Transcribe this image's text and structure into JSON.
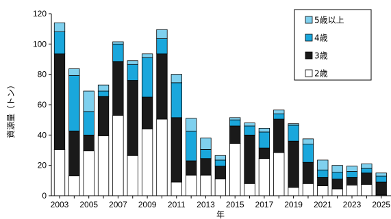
{
  "chart_data": {
    "type": "bar",
    "stacked": true,
    "xlabel": "年",
    "ylabel": "資源量（トン）",
    "ylim": [
      0,
      120
    ],
    "yticks": [
      0,
      20,
      40,
      60,
      80,
      100,
      120
    ],
    "categories": [
      "2003",
      "2004",
      "2005",
      "2006",
      "2007",
      "2008",
      "2009",
      "2010",
      "2011",
      "2012",
      "2013",
      "2014",
      "2015",
      "2016",
      "2017",
      "2018",
      "2019",
      "2020",
      "2021",
      "2022",
      "2023",
      "2024",
      "2025"
    ],
    "xtick_labels": [
      "2003",
      "2005",
      "2007",
      "2009",
      "2011",
      "2013",
      "2015",
      "2017",
      "2019",
      "2021",
      "2023",
      "2025"
    ],
    "legend_position": "top-right",
    "series": [
      {
        "name": "2歳",
        "color": "#ffffff",
        "values": [
          30.5,
          13.2,
          29.5,
          39.5,
          53,
          26.5,
          44,
          50.5,
          9,
          13.5,
          13.5,
          11,
          34.5,
          8,
          24.5,
          28.5,
          5.5,
          8,
          6.5,
          4.5,
          7,
          7.5,
          0.5
        ]
      },
      {
        "name": "3歳",
        "color": "#1a1a1a",
        "values": [
          63,
          29.5,
          10.5,
          26,
          35.5,
          49.5,
          21,
          43,
          42.5,
          9.5,
          11,
          8.5,
          11.5,
          32,
          7,
          22,
          30.5,
          14,
          5.5,
          6.5,
          5,
          7.5,
          8.5
        ]
      },
      {
        "name": "4歳",
        "color": "#1aa7dc",
        "values": [
          14.5,
          36.5,
          15.5,
          3.5,
          11.5,
          10.5,
          26,
          10,
          23,
          19.5,
          6,
          4,
          4,
          6,
          10.5,
          3.5,
          10.5,
          12,
          5,
          4.5,
          4,
          3,
          4
        ]
      },
      {
        "name": "5歳以上",
        "color": "#7fd0ee",
        "values": [
          6,
          4.5,
          13.5,
          4,
          1.5,
          2.5,
          2.5,
          6,
          5.5,
          8.5,
          7.5,
          3,
          1.5,
          2,
          2.5,
          2.5,
          1,
          3.5,
          6.5,
          4.5,
          3.5,
          3,
          2
        ]
      }
    ]
  }
}
